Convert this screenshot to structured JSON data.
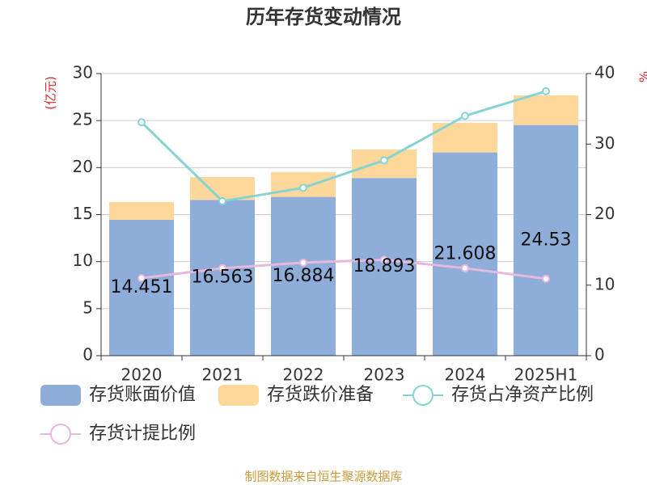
{
  "chart_data": {
    "type": "bar",
    "title": "历年存货变动情况",
    "y_axis_label": "(亿元)",
    "y2_axis_label": "%",
    "categories": [
      "2020",
      "2021",
      "2022",
      "2023",
      "2024",
      "2025H1"
    ],
    "series": [
      {
        "name": "存货账面价值",
        "color": "#8eadd9",
        "type": "bar",
        "values": [
          14.451,
          16.563,
          16.884,
          18.893,
          21.608,
          24.53
        ]
      },
      {
        "name": "存货跌价准备",
        "color": "#fdd89a",
        "type": "bar",
        "values": [
          1.89,
          2.44,
          2.64,
          3.03,
          3.15,
          3.16
        ]
      },
      {
        "name": "存货占净资产比例",
        "color": "#87d3d3",
        "type": "line",
        "axis": "y2",
        "values": [
          33.1,
          21.9,
          23.8,
          27.7,
          34.0,
          37.5
        ]
      },
      {
        "name": "存货计提比例",
        "color": "#e6b8dc",
        "type": "line",
        "axis": "y2",
        "values": [
          11.0,
          12.4,
          13.2,
          13.6,
          12.4,
          10.9
        ]
      }
    ],
    "ylim": [
      0,
      30
    ],
    "yticks": [
      0,
      5,
      10,
      15,
      20,
      25,
      30
    ],
    "y2lim": [
      0,
      40
    ],
    "y2ticks": [
      0,
      10,
      20,
      30,
      40
    ],
    "grid": true,
    "source": "制图数据来自恒生聚源数据库"
  }
}
